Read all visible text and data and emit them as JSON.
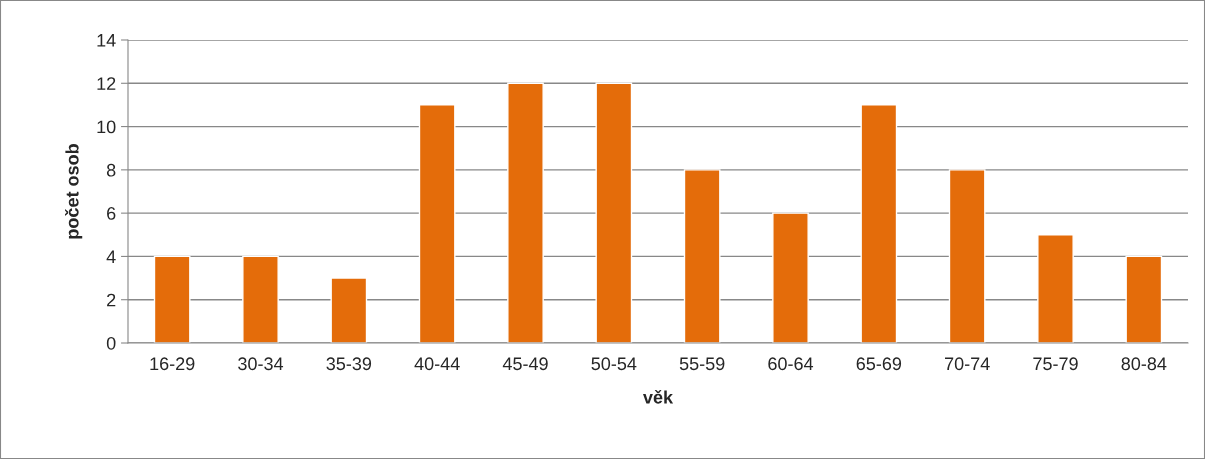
{
  "chart_data": {
    "type": "bar",
    "xlabel": "věk",
    "ylabel": "počet osob",
    "categories": [
      "16-29",
      "30-34",
      "35-39",
      "40-44",
      "45-49",
      "50-54",
      "55-59",
      "60-64",
      "65-69",
      "70-74",
      "75-79",
      "80-84"
    ],
    "values": [
      4,
      4,
      3,
      11,
      12,
      12,
      8,
      6,
      11,
      8,
      5,
      4
    ],
    "color": "#e46c0a",
    "ylim": [
      0,
      14
    ],
    "yticks": [
      0,
      2,
      4,
      6,
      8,
      10,
      12,
      14
    ],
    "grid": "y",
    "legend": false
  }
}
